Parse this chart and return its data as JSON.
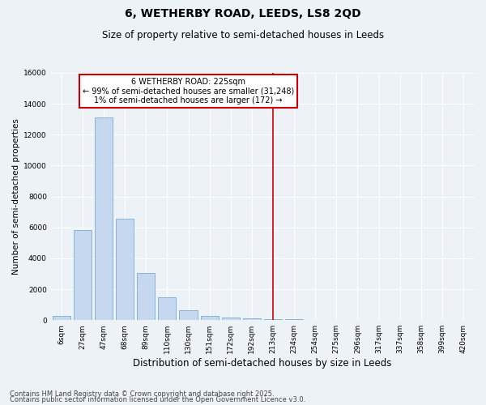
{
  "title1": "6, WETHERBY ROAD, LEEDS, LS8 2QD",
  "title2": "Size of property relative to semi-detached houses in Leeds",
  "xlabel": "Distribution of semi-detached houses by size in Leeds",
  "ylabel": "Number of semi-detached properties",
  "categories": [
    "6sqm",
    "27sqm",
    "47sqm",
    "68sqm",
    "89sqm",
    "110sqm",
    "130sqm",
    "151sqm",
    "172sqm",
    "192sqm",
    "213sqm",
    "234sqm",
    "254sqm",
    "275sqm",
    "296sqm",
    "317sqm",
    "337sqm",
    "358sqm",
    "399sqm",
    "420sqm"
  ],
  "values": [
    290,
    5850,
    13100,
    6580,
    3050,
    1480,
    620,
    280,
    145,
    115,
    80,
    50,
    30,
    20,
    10,
    5,
    3,
    2,
    1,
    0
  ],
  "bar_color": "#c5d8ef",
  "bar_edge_color": "#7aadd4",
  "annotation_title": "6 WETHERBY ROAD: 225sqm",
  "annotation_line1": "← 99% of semi-detached houses are smaller (31,248)",
  "annotation_line2": "1% of semi-detached houses are larger (172) →",
  "vline_index": 10,
  "ylim": [
    0,
    16000
  ],
  "yticks": [
    0,
    2000,
    4000,
    6000,
    8000,
    10000,
    12000,
    14000,
    16000
  ],
  "footer1": "Contains HM Land Registry data © Crown copyright and database right 2025.",
  "footer2": "Contains public sector information licensed under the Open Government Licence v3.0.",
  "background_color": "#edf2f7",
  "annotation_box_color": "#ffffff",
  "annotation_border_color": "#cc0000",
  "vline_color": "#cc0000",
  "grid_color": "#ffffff",
  "title1_fontsize": 10,
  "title2_fontsize": 8.5,
  "xlabel_fontsize": 8.5,
  "ylabel_fontsize": 7.5,
  "tick_fontsize": 6.5,
  "annotation_fontsize": 7,
  "footer_fontsize": 6
}
